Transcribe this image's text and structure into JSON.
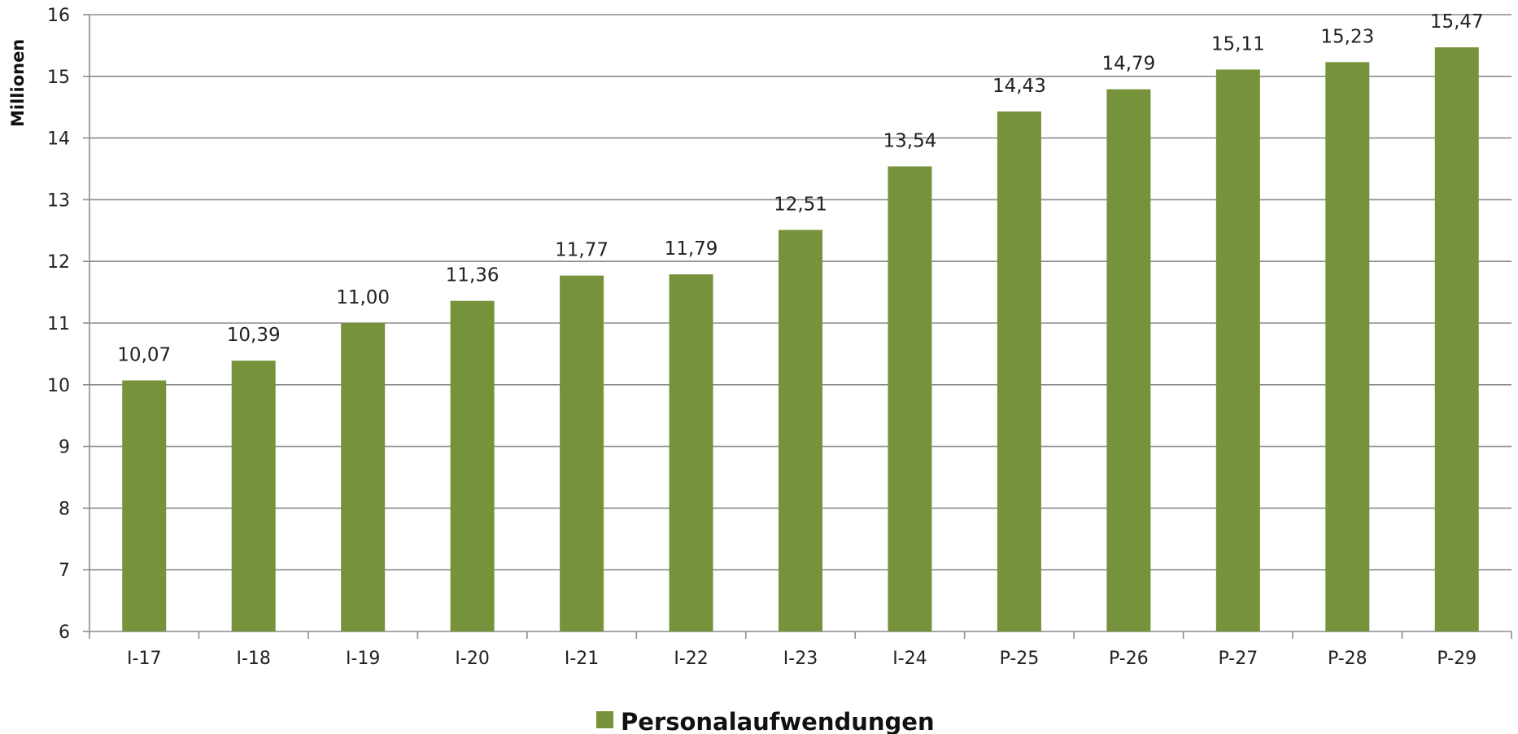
{
  "chart_data": {
    "type": "bar",
    "title": "",
    "xlabel": "",
    "ylabel": "Millionen",
    "ylim": [
      6,
      16
    ],
    "yticks": [
      "6",
      "7",
      "8",
      "9",
      "10",
      "11",
      "12",
      "13",
      "14",
      "15",
      "16"
    ],
    "categories": [
      "I-17",
      "I-18",
      "I-19",
      "I-20",
      "I-21",
      "I-22",
      "I-23",
      "I-24",
      "P-25",
      "P-26",
      "P-27",
      "P-28",
      "P-29"
    ],
    "series": [
      {
        "name": "Personalaufwendungen",
        "values": [
          10.07,
          10.39,
          11.0,
          11.36,
          11.77,
          11.79,
          12.51,
          13.54,
          14.43,
          14.79,
          15.11,
          15.23,
          15.47
        ],
        "labels": [
          "10,07",
          "10,39",
          "11,00",
          "11,36",
          "11,77",
          "11,79",
          "12,51",
          "13,54",
          "14,43",
          "14,79",
          "15,11",
          "15,23",
          "15,47"
        ],
        "color": "#76933c"
      }
    ],
    "grid": true,
    "legend": "bottom-center"
  }
}
